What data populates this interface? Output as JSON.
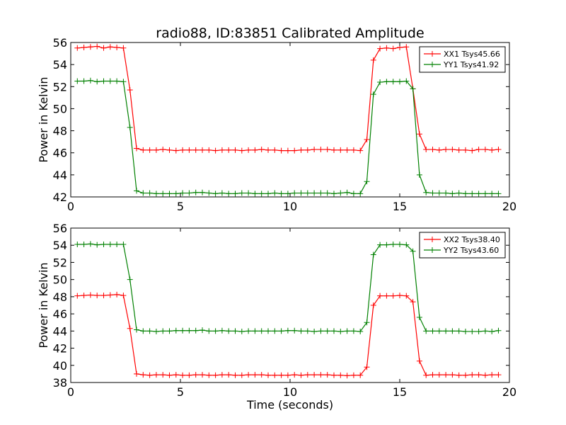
{
  "figure": {
    "title": "radio88, ID:83851 Calibrated Amplitude"
  },
  "chart_data": [
    {
      "type": "line",
      "xlabel": "",
      "ylabel": "Power in Kelvin",
      "xlim": [
        0,
        20
      ],
      "ylim": [
        42,
        56
      ],
      "xticks": [
        0,
        5,
        10,
        15,
        20
      ],
      "xtick_labels": [
        "0",
        "5",
        "10",
        "15",
        "20"
      ],
      "yticks": [
        42,
        44,
        46,
        48,
        50,
        52,
        54,
        56
      ],
      "ytick_labels": [
        "42",
        "44",
        "46",
        "48",
        "50",
        "52",
        "54",
        "56"
      ],
      "grid": false,
      "legend": "top-right",
      "x": [
        0.3,
        0.6,
        0.9,
        1.2,
        1.5,
        1.8,
        2.1,
        2.4,
        2.7,
        3.0,
        3.3,
        3.6,
        3.9,
        4.2,
        4.5,
        4.8,
        5.1,
        5.4,
        5.7,
        6.0,
        6.3,
        6.6,
        6.9,
        7.2,
        7.5,
        7.8,
        8.1,
        8.4,
        8.7,
        9.0,
        9.3,
        9.6,
        9.9,
        10.2,
        10.5,
        10.8,
        11.1,
        11.4,
        11.7,
        12.0,
        12.3,
        12.6,
        12.9,
        13.2,
        13.5,
        13.8,
        14.1,
        14.4,
        14.7,
        15.0,
        15.3,
        15.6,
        15.9,
        16.2,
        16.5,
        16.8,
        17.1,
        17.4,
        17.7,
        18.0,
        18.3,
        18.6,
        18.9,
        19.2,
        19.5
      ],
      "series": [
        {
          "name": "XX1 Tsys45.66",
          "color": "#ff0000",
          "values": [
            55.5,
            55.55,
            55.6,
            55.65,
            55.5,
            55.6,
            55.55,
            55.5,
            51.7,
            46.4,
            46.25,
            46.25,
            46.25,
            46.3,
            46.25,
            46.2,
            46.25,
            46.25,
            46.25,
            46.25,
            46.25,
            46.2,
            46.25,
            46.25,
            46.25,
            46.2,
            46.25,
            46.25,
            46.3,
            46.25,
            46.25,
            46.2,
            46.2,
            46.2,
            46.25,
            46.25,
            46.3,
            46.3,
            46.3,
            46.25,
            46.25,
            46.25,
            46.25,
            46.2,
            47.2,
            54.4,
            55.45,
            55.5,
            55.45,
            55.55,
            55.6,
            51.8,
            47.7,
            46.3,
            46.3,
            46.25,
            46.3,
            46.3,
            46.25,
            46.25,
            46.2,
            46.3,
            46.3,
            46.25,
            46.3
          ]
        },
        {
          "name": "YY1 Tsys41.92",
          "color": "#008000",
          "values": [
            52.5,
            52.5,
            52.55,
            52.45,
            52.5,
            52.5,
            52.5,
            52.45,
            48.3,
            42.55,
            42.35,
            42.35,
            42.3,
            42.3,
            42.3,
            42.3,
            42.35,
            42.35,
            42.4,
            42.4,
            42.35,
            42.3,
            42.35,
            42.3,
            42.3,
            42.35,
            42.35,
            42.3,
            42.3,
            42.3,
            42.35,
            42.3,
            42.3,
            42.35,
            42.35,
            42.35,
            42.35,
            42.35,
            42.35,
            42.3,
            42.35,
            42.4,
            42.3,
            42.3,
            43.4,
            51.3,
            52.4,
            52.45,
            52.45,
            52.45,
            52.5,
            51.8,
            44.0,
            42.4,
            42.35,
            42.35,
            42.35,
            42.3,
            42.35,
            42.3,
            42.3,
            42.3,
            42.3,
            42.3,
            42.3
          ]
        }
      ]
    },
    {
      "type": "line",
      "xlabel": "Time (seconds)",
      "ylabel": "Power in Kelvin",
      "xlim": [
        0,
        20
      ],
      "ylim": [
        38,
        56
      ],
      "xticks": [
        0,
        5,
        10,
        15,
        20
      ],
      "xtick_labels": [
        "0",
        "5",
        "10",
        "15",
        "20"
      ],
      "yticks": [
        38,
        40,
        42,
        44,
        46,
        48,
        50,
        52,
        54,
        56
      ],
      "ytick_labels": [
        "38",
        "40",
        "42",
        "44",
        "46",
        "48",
        "50",
        "52",
        "54",
        "56"
      ],
      "grid": false,
      "legend": "top-right",
      "x": [
        0.3,
        0.6,
        0.9,
        1.2,
        1.5,
        1.8,
        2.1,
        2.4,
        2.7,
        3.0,
        3.3,
        3.6,
        3.9,
        4.2,
        4.5,
        4.8,
        5.1,
        5.4,
        5.7,
        6.0,
        6.3,
        6.6,
        6.9,
        7.2,
        7.5,
        7.8,
        8.1,
        8.4,
        8.7,
        9.0,
        9.3,
        9.6,
        9.9,
        10.2,
        10.5,
        10.8,
        11.1,
        11.4,
        11.7,
        12.0,
        12.3,
        12.6,
        12.9,
        13.2,
        13.5,
        13.8,
        14.1,
        14.4,
        14.7,
        15.0,
        15.3,
        15.6,
        15.9,
        16.2,
        16.5,
        16.8,
        17.1,
        17.4,
        17.7,
        18.0,
        18.3,
        18.6,
        18.9,
        19.2,
        19.5
      ],
      "series": [
        {
          "name": "XX2 Tsys38.40",
          "color": "#ff0000",
          "values": [
            48.1,
            48.15,
            48.2,
            48.15,
            48.15,
            48.2,
            48.25,
            48.15,
            44.3,
            39.0,
            38.9,
            38.85,
            38.9,
            38.9,
            38.85,
            38.9,
            38.85,
            38.85,
            38.9,
            38.9,
            38.85,
            38.85,
            38.9,
            38.9,
            38.85,
            38.85,
            38.9,
            38.9,
            38.9,
            38.85,
            38.85,
            38.85,
            38.85,
            38.9,
            38.85,
            38.9,
            38.9,
            38.9,
            38.9,
            38.85,
            38.85,
            38.8,
            38.85,
            38.85,
            39.8,
            47.0,
            48.1,
            48.1,
            48.1,
            48.15,
            48.1,
            47.4,
            40.5,
            38.85,
            38.9,
            38.9,
            38.9,
            38.9,
            38.85,
            38.85,
            38.9,
            38.9,
            38.85,
            38.9,
            38.9
          ]
        },
        {
          "name": "YY2 Tsys43.60",
          "color": "#008000",
          "values": [
            54.1,
            54.1,
            54.15,
            54.05,
            54.1,
            54.1,
            54.1,
            54.1,
            50.0,
            44.15,
            44.0,
            44.0,
            43.95,
            44.0,
            44.0,
            44.05,
            44.05,
            44.05,
            44.05,
            44.1,
            44.0,
            44.0,
            44.05,
            44.0,
            44.0,
            43.95,
            44.0,
            44.0,
            44.0,
            44.0,
            44.0,
            44.0,
            44.05,
            44.05,
            44.0,
            44.0,
            43.95,
            44.0,
            44.0,
            44.0,
            43.95,
            44.0,
            44.0,
            43.95,
            45.0,
            52.9,
            54.05,
            54.05,
            54.1,
            54.1,
            54.05,
            53.3,
            45.6,
            44.0,
            44.0,
            44.0,
            44.0,
            44.0,
            44.0,
            43.95,
            43.95,
            43.95,
            44.0,
            43.95,
            44.05
          ]
        }
      ]
    }
  ]
}
